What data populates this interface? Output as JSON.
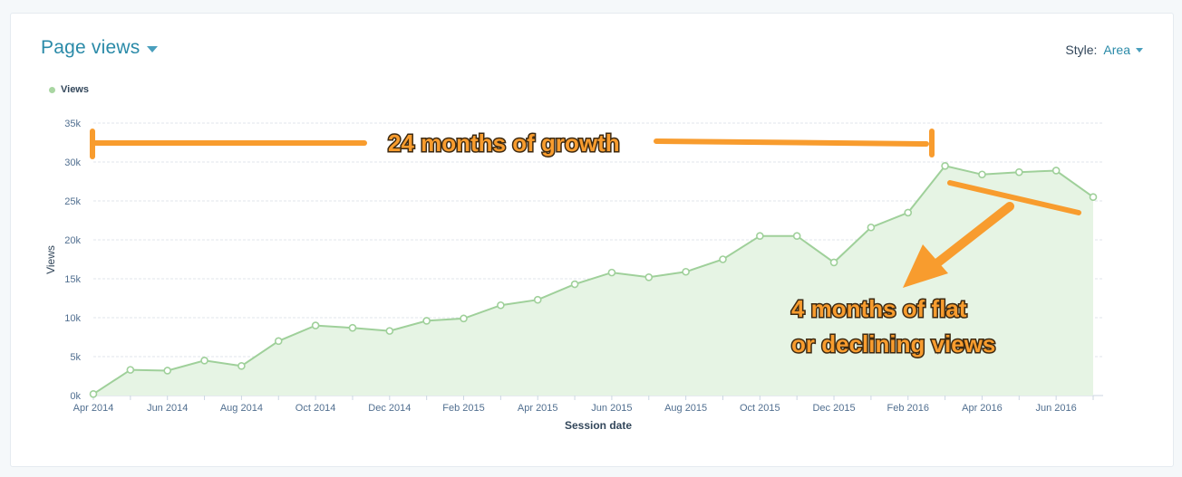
{
  "header": {
    "title": "Page views"
  },
  "style_control": {
    "label": "Style:",
    "value": "Area"
  },
  "legend": {
    "label": "Views",
    "color": "#a9d6a2"
  },
  "colors": {
    "line": "#9fd09a",
    "fill": "#e6f4e4",
    "annotation": "#f89c2e",
    "accent": "#2a8aa8"
  },
  "chart_data": {
    "type": "area",
    "title": "",
    "xlabel": "Session date",
    "ylabel": "Views",
    "ylim": [
      0,
      35000
    ],
    "yticks": [
      0,
      5000,
      10000,
      15000,
      20000,
      25000,
      30000,
      35000
    ],
    "ytick_labels": [
      "0k",
      "5k",
      "10k",
      "15k",
      "20k",
      "25k",
      "30k",
      "35k"
    ],
    "x": [
      "Apr 2014",
      "May 2014",
      "Jun 2014",
      "Jul 2014",
      "Aug 2014",
      "Sep 2014",
      "Oct 2014",
      "Nov 2014",
      "Dec 2014",
      "Jan 2015",
      "Feb 2015",
      "Mar 2015",
      "Apr 2015",
      "May 2015",
      "Jun 2015",
      "Jul 2015",
      "Aug 2015",
      "Sep 2015",
      "Oct 2015",
      "Nov 2015",
      "Dec 2015",
      "Jan 2016",
      "Feb 2016",
      "Mar 2016",
      "Apr 2016",
      "May 2016",
      "Jun 2016",
      "Jul 2016"
    ],
    "xtick_labels": [
      "Apr 2014",
      "",
      "Jun 2014",
      "",
      "Aug 2014",
      "",
      "Oct 2014",
      "",
      "Dec 2014",
      "",
      "Feb 2015",
      "",
      "Apr 2015",
      "",
      "Jun 2015",
      "",
      "Aug 2015",
      "",
      "Oct 2015",
      "",
      "Dec 2015",
      "",
      "Feb 2016",
      "",
      "Apr 2016",
      "",
      "Jun 2016",
      ""
    ],
    "series": [
      {
        "name": "Views",
        "values": [
          200,
          3300,
          3200,
          4500,
          3800,
          7000,
          9000,
          8700,
          8300,
          9600,
          9900,
          11600,
          12300,
          14300,
          15800,
          15200,
          15900,
          17500,
          20500,
          20500,
          17100,
          21600,
          23500,
          29500,
          28400,
          28700,
          28900,
          25500
        ]
      }
    ],
    "grid": true,
    "legend_position": "top-left",
    "annotations": [
      {
        "text": "24 months of growth"
      },
      {
        "text": "4 months of flat"
      },
      {
        "text": "or declining views"
      }
    ]
  }
}
